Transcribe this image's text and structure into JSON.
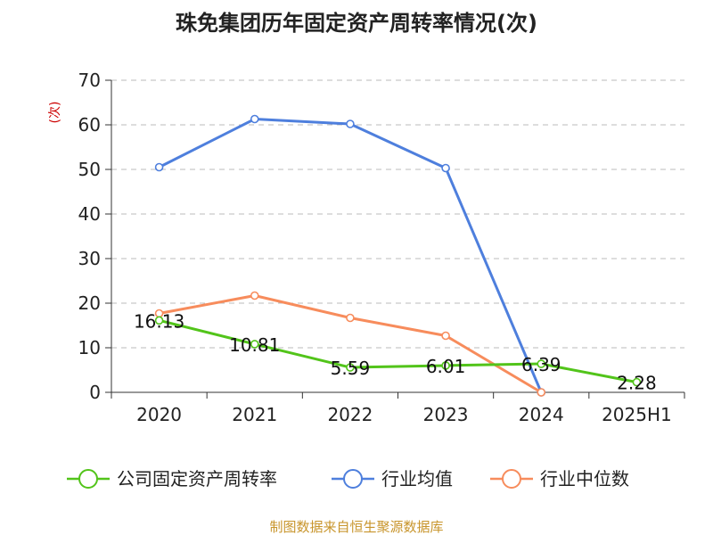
{
  "chart_data": {
    "type": "line",
    "title": "珠免集团历年固定资产周转率情况(次)",
    "ylabel": "(次)",
    "categories": [
      "2020",
      "2021",
      "2022",
      "2023",
      "2024",
      "2025H1"
    ],
    "ylim": [
      0,
      70
    ],
    "yticks": [
      0,
      10,
      20,
      30,
      40,
      50,
      60,
      70
    ],
    "grid": true,
    "legend_position": "bottom",
    "series": [
      {
        "name": "公司固定资产周转率",
        "color": "#52c41a",
        "values": [
          16.13,
          10.81,
          5.59,
          6.01,
          6.39,
          2.28
        ],
        "labels": [
          "16.13",
          "10.81",
          "5.59",
          "6.01",
          "6.39",
          "2.28"
        ]
      },
      {
        "name": "行业均值",
        "color": "#4e7fdd",
        "values": [
          50.5,
          61.3,
          60.2,
          50.3,
          0,
          null
        ]
      },
      {
        "name": "行业中位数",
        "color": "#f78c5c",
        "values": [
          17.7,
          21.7,
          16.7,
          12.7,
          0,
          null
        ]
      }
    ],
    "source": "制图数据来自恒生聚源数据库",
    "colors": {
      "ylabel": "#cc0000",
      "source": "#c8952c",
      "axis": "#333333",
      "grid": "#bbbbbb"
    }
  }
}
